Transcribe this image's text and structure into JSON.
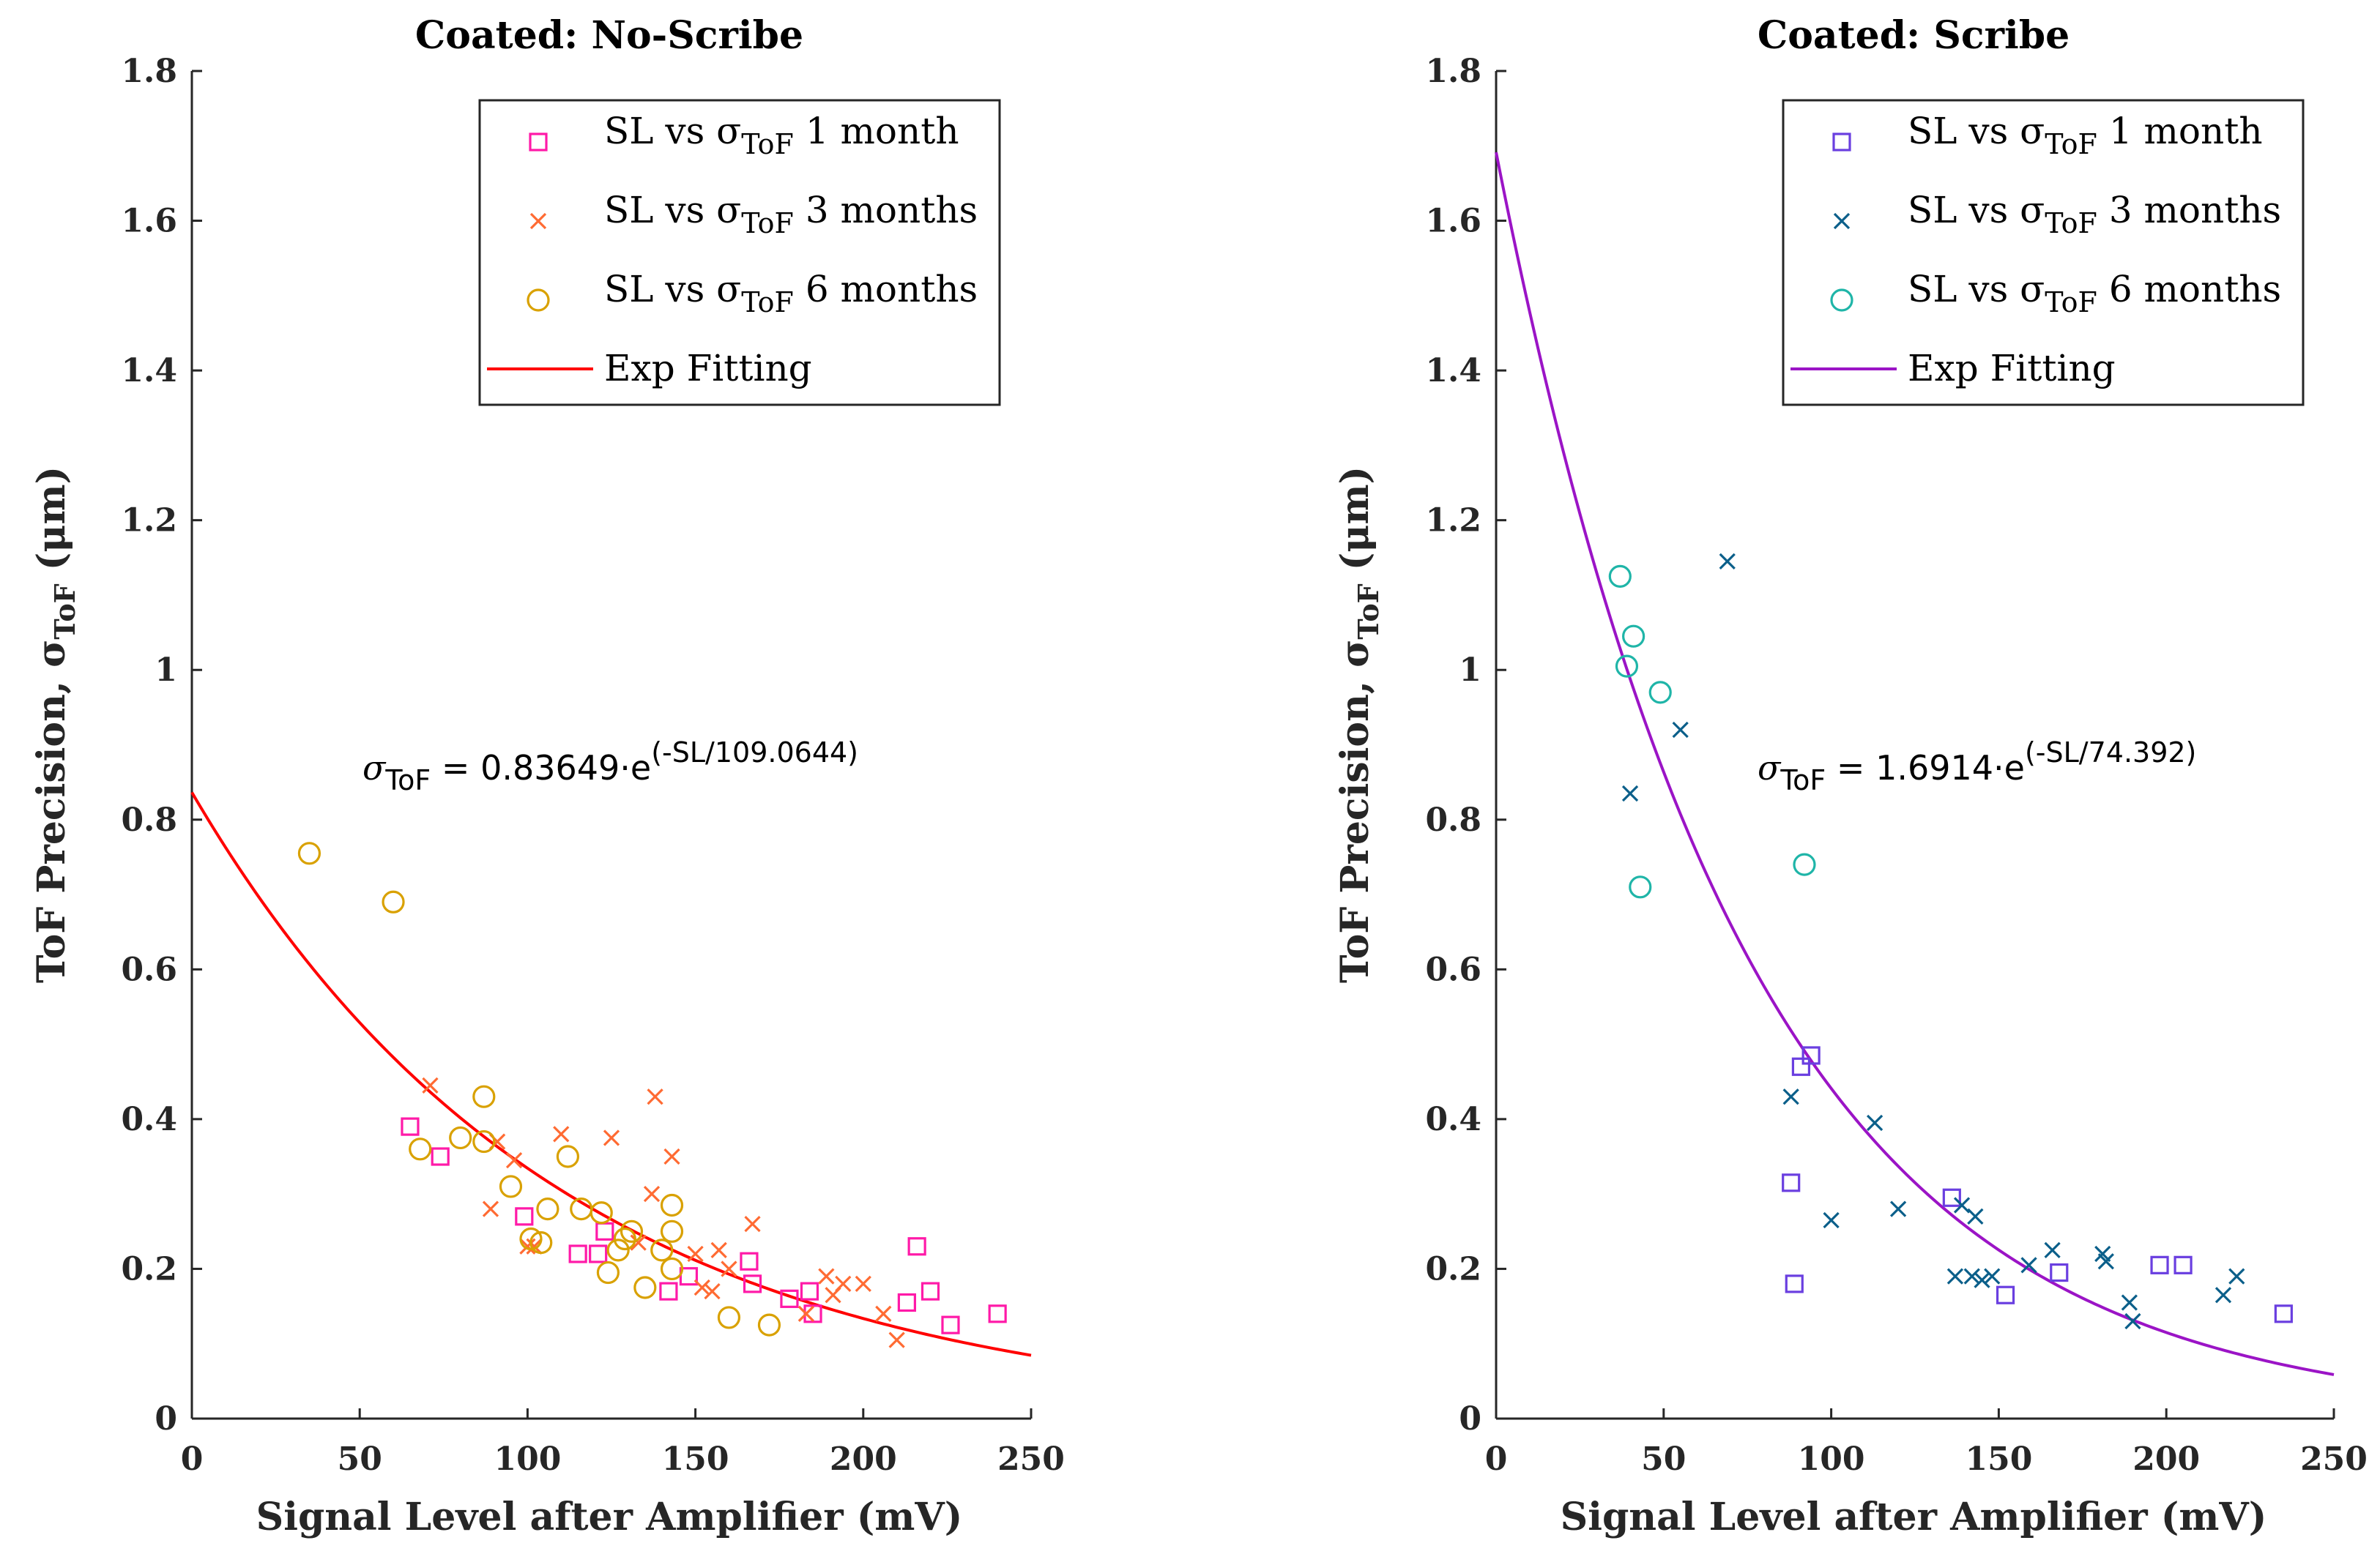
{
  "figure": {
    "y_axis_label": "ToF Precision, σ",
    "y_axis_label_sub": "ToF",
    "y_axis_label_unit": " (μm)"
  },
  "chart_data": [
    {
      "type": "scatter",
      "title": "Coated: No-Scribe",
      "xlabel": "Signal Level after Amplifier (mV)",
      "ylabel": "ToF Precision, σToF (μm)",
      "xlim": [
        0,
        250
      ],
      "ylim": [
        0,
        1.8
      ],
      "xticks": [
        "0",
        "50",
        "100",
        "150",
        "200",
        "250"
      ],
      "yticks": [
        "0",
        "0.2",
        "0.4",
        "0.6",
        "0.8",
        "1",
        "1.2",
        "1.4",
        "1.6",
        "1.8"
      ],
      "legend_position": "top-right",
      "series": [
        {
          "name": "SL vs σToF 1 month",
          "legend_prefix": "SL vs σ",
          "legend_sub": "ToF",
          "legend_suffix": " 1 month",
          "marker": "square",
          "color": "#ff1aa8",
          "points": [
            [
              65,
              0.39
            ],
            [
              74,
              0.35
            ],
            [
              99,
              0.27
            ],
            [
              115,
              0.22
            ],
            [
              121,
              0.22
            ],
            [
              123,
              0.25
            ],
            [
              142,
              0.17
            ],
            [
              148,
              0.19
            ],
            [
              166,
              0.21
            ],
            [
              167,
              0.18
            ],
            [
              178,
              0.16
            ],
            [
              184,
              0.17
            ],
            [
              185,
              0.14
            ],
            [
              213,
              0.155
            ],
            [
              216,
              0.23
            ],
            [
              220,
              0.17
            ],
            [
              226,
              0.125
            ],
            [
              240,
              0.14
            ]
          ]
        },
        {
          "name": "SL vs σToF 3 months",
          "legend_prefix": "SL vs σ",
          "legend_sub": "ToF",
          "legend_suffix": " 3 months",
          "marker": "x",
          "color": "#ff6b33",
          "points": [
            [
              71,
              0.445
            ],
            [
              89,
              0.28
            ],
            [
              91,
              0.37
            ],
            [
              96,
              0.345
            ],
            [
              100,
              0.23
            ],
            [
              102,
              0.23
            ],
            [
              110,
              0.38
            ],
            [
              125,
              0.375
            ],
            [
              133,
              0.235
            ],
            [
              137,
              0.3
            ],
            [
              138,
              0.43
            ],
            [
              143,
              0.35
            ],
            [
              150,
              0.22
            ],
            [
              152,
              0.175
            ],
            [
              155,
              0.17
            ],
            [
              157,
              0.225
            ],
            [
              160,
              0.2
            ],
            [
              167,
              0.26
            ],
            [
              183,
              0.14
            ],
            [
              189,
              0.19
            ],
            [
              191,
              0.165
            ],
            [
              194,
              0.18
            ],
            [
              200,
              0.18
            ],
            [
              206,
              0.14
            ],
            [
              210,
              0.105
            ]
          ]
        },
        {
          "name": "SL vs σToF 6 months",
          "legend_prefix": "SL vs σ",
          "legend_sub": "ToF",
          "legend_suffix": " 6 months",
          "marker": "circle",
          "color": "#d9a100",
          "points": [
            [
              35,
              0.755
            ],
            [
              60,
              0.69
            ],
            [
              68,
              0.36
            ],
            [
              80,
              0.375
            ],
            [
              87,
              0.43
            ],
            [
              87,
              0.37
            ],
            [
              95,
              0.31
            ],
            [
              101,
              0.24
            ],
            [
              104,
              0.235
            ],
            [
              106,
              0.28
            ],
            [
              112,
              0.35
            ],
            [
              116,
              0.28
            ],
            [
              122,
              0.275
            ],
            [
              124,
              0.195
            ],
            [
              127,
              0.225
            ],
            [
              129,
              0.24
            ],
            [
              131,
              0.25
            ],
            [
              135,
              0.175
            ],
            [
              140,
              0.225
            ],
            [
              143,
              0.285
            ],
            [
              143,
              0.25
            ],
            [
              143,
              0.2
            ],
            [
              160,
              0.135
            ],
            [
              172,
              0.125
            ]
          ]
        }
      ],
      "fit": {
        "name": "Exp Fitting",
        "color": "#ff0000",
        "a": 0.83649,
        "tau": 109.0644,
        "eq_lhs": "σ",
        "eq_sub": "ToF",
        "eq_mid": " = 0.83649·e",
        "eq_exp": "(-SL/109.0644)"
      }
    },
    {
      "type": "scatter",
      "title": "Coated: Scribe",
      "xlabel": "Signal Level after Amplifier (mV)",
      "ylabel": "ToF Precision, σToF (μm)",
      "xlim": [
        0,
        250
      ],
      "ylim": [
        0,
        1.8
      ],
      "xticks": [
        "0",
        "50",
        "100",
        "150",
        "200",
        "250"
      ],
      "yticks": [
        "0",
        "0.2",
        "0.4",
        "0.6",
        "0.8",
        "1",
        "1.2",
        "1.4",
        "1.6",
        "1.8"
      ],
      "legend_position": "top-right",
      "series": [
        {
          "name": "SL vs σToF 1 month",
          "legend_prefix": "SL vs σ",
          "legend_sub": "ToF",
          "legend_suffix": " 1 month",
          "marker": "square",
          "color": "#6a3fe0",
          "points": [
            [
              88,
              0.315
            ],
            [
              89,
              0.18
            ],
            [
              91,
              0.47
            ],
            [
              94,
              0.485
            ],
            [
              136,
              0.295
            ],
            [
              152,
              0.165
            ],
            [
              168,
              0.195
            ],
            [
              198,
              0.205
            ],
            [
              205,
              0.205
            ],
            [
              235,
              0.14
            ]
          ]
        },
        {
          "name": "SL vs σToF 3 months",
          "legend_prefix": "SL vs σ",
          "legend_sub": "ToF",
          "legend_suffix": " 3 months",
          "marker": "x",
          "color": "#0b5f8a",
          "points": [
            [
              40,
              0.835
            ],
            [
              55,
              0.92
            ],
            [
              69,
              1.145
            ],
            [
              88,
              0.43
            ],
            [
              100,
              0.265
            ],
            [
              113,
              0.395
            ],
            [
              120,
              0.28
            ],
            [
              137,
              0.19
            ],
            [
              139,
              0.285
            ],
            [
              142,
              0.19
            ],
            [
              143,
              0.27
            ],
            [
              145,
              0.185
            ],
            [
              148,
              0.19
            ],
            [
              159,
              0.205
            ],
            [
              166,
              0.225
            ],
            [
              181,
              0.22
            ],
            [
              182,
              0.21
            ],
            [
              189,
              0.155
            ],
            [
              190,
              0.13
            ],
            [
              217,
              0.165
            ],
            [
              221,
              0.19
            ]
          ]
        },
        {
          "name": "SL vs σToF 6 months",
          "legend_prefix": "SL vs σ",
          "legend_sub": "ToF",
          "legend_suffix": " 6 months",
          "marker": "circle",
          "color": "#1fb5a8",
          "points": [
            [
              37,
              1.125
            ],
            [
              39,
              1.005
            ],
            [
              41,
              1.045
            ],
            [
              43,
              0.71
            ],
            [
              49,
              0.97
            ],
            [
              92,
              0.74
            ]
          ]
        }
      ],
      "fit": {
        "name": "Exp Fitting",
        "color": "#9b14c6",
        "a": 1.6914,
        "tau": 74.392,
        "eq_lhs": "σ",
        "eq_sub": "ToF",
        "eq_mid": " = 1.6914·e",
        "eq_exp": "(-SL/74.392)"
      }
    }
  ]
}
